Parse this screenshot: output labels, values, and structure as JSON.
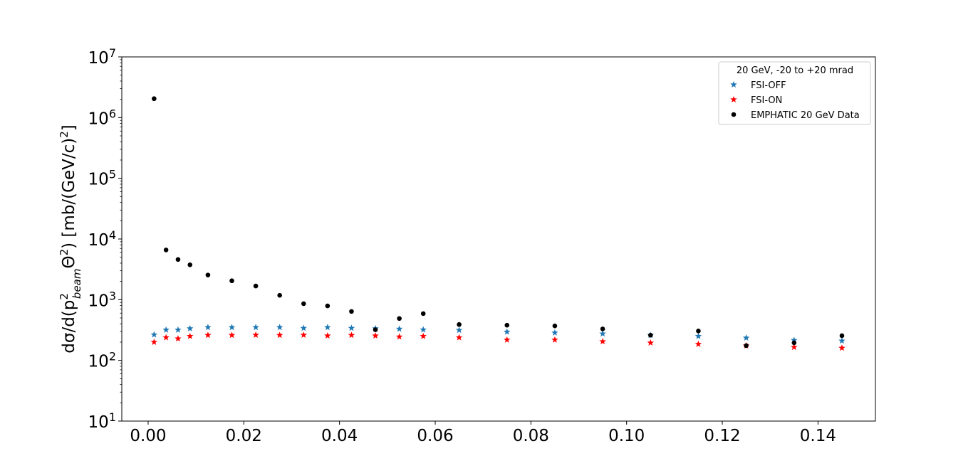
{
  "chart_data": {
    "type": "scatter",
    "ylabel": "dσ/d(p²beamΘ²) [mb/(GeV/c)²]",
    "ylabel_parts": {
      "prefix": "dσ/d(p",
      "sup1": "2",
      "sub1": "beam",
      "theta": "Θ",
      "sup2": "2",
      "mid": ") [mb/(GeV/c)",
      "sup3": "2",
      "suffix": "]"
    },
    "xlim": [
      -0.0055,
      0.152
    ],
    "ylim": [
      10,
      10000000
    ],
    "yscale": "log",
    "x_ticks": [
      "0.00",
      "0.02",
      "0.04",
      "0.06",
      "0.08",
      "0.10",
      "0.12",
      "0.14"
    ],
    "x_tick_values": [
      0.0,
      0.02,
      0.04,
      0.06,
      0.08,
      0.1,
      0.12,
      0.14
    ],
    "y_ticks": [
      {
        "base": "10",
        "exp": "1",
        "value": 10
      },
      {
        "base": "10",
        "exp": "2",
        "value": 100
      },
      {
        "base": "10",
        "exp": "3",
        "value": 1000
      },
      {
        "base": "10",
        "exp": "4",
        "value": 10000
      },
      {
        "base": "10",
        "exp": "5",
        "value": 100000
      },
      {
        "base": "10",
        "exp": "6",
        "value": 1000000
      },
      {
        "base": "10",
        "exp": "7",
        "value": 10000000
      }
    ],
    "grid": false,
    "legend": {
      "title": "20 GeV, -20 to +20 mrad",
      "placement": "top-right"
    },
    "series": [
      {
        "name": "FSI-OFF",
        "marker": "star",
        "color": "#1f77b4",
        "x": [
          0.00125,
          0.00375,
          0.00625,
          0.00875,
          0.0125,
          0.0175,
          0.0225,
          0.0275,
          0.0325,
          0.0375,
          0.0425,
          0.0475,
          0.0525,
          0.0575,
          0.065,
          0.075,
          0.085,
          0.095,
          0.105,
          0.115,
          0.125,
          0.135,
          0.145
        ],
        "y": [
          265,
          318,
          318,
          335,
          350,
          350,
          350,
          350,
          340,
          350,
          340,
          335,
          330,
          320,
          315,
          295,
          285,
          275,
          260,
          250,
          235,
          215,
          210
        ]
      },
      {
        "name": "FSI-ON",
        "marker": "star",
        "color": "#ff0000",
        "x": [
          0.00125,
          0.00375,
          0.00625,
          0.00875,
          0.0125,
          0.0175,
          0.0225,
          0.0275,
          0.0325,
          0.0375,
          0.0425,
          0.0475,
          0.0525,
          0.0575,
          0.065,
          0.075,
          0.085,
          0.095,
          0.105,
          0.115,
          0.125,
          0.135,
          0.145
        ],
        "y": [
          200,
          238,
          228,
          250,
          260,
          260,
          262,
          260,
          262,
          255,
          260,
          255,
          245,
          250,
          238,
          218,
          218,
          205,
          195,
          185,
          175,
          165,
          160
        ]
      },
      {
        "name": "EMPHATIC 20 GeV Data",
        "marker": "circle",
        "color": "#000000",
        "x": [
          0.00125,
          0.00375,
          0.00625,
          0.00875,
          0.0125,
          0.0175,
          0.0225,
          0.0275,
          0.0325,
          0.0375,
          0.0425,
          0.0475,
          0.0525,
          0.0575,
          0.065,
          0.075,
          0.085,
          0.095,
          0.105,
          0.115,
          0.125,
          0.135,
          0.145
        ],
        "y": [
          2050000,
          6600,
          4600,
          3750,
          2550,
          2050,
          1680,
          1180,
          860,
          790,
          640,
          320,
          490,
          590,
          390,
          380,
          370,
          330,
          260,
          305,
          175,
          195,
          255
        ]
      }
    ]
  }
}
